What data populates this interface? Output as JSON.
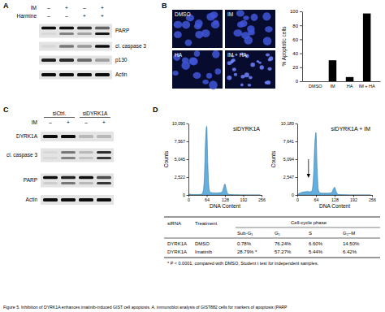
{
  "panel_labels": [
    "A",
    "B",
    "C",
    "D"
  ],
  "blot_a": {
    "conditions": [
      {
        "label": "IM",
        "values": [
          "–",
          "+",
          "–",
          "+"
        ]
      },
      {
        "label": "Harmine",
        "values": [
          "–",
          "–",
          "+",
          "+"
        ]
      }
    ],
    "rows": [
      "PARP",
      "cl. caspase 3",
      "p130",
      "Actin"
    ]
  },
  "micrographs": [
    "DMSO",
    "IM",
    "HA",
    "IM + HA"
  ],
  "blot_c": {
    "groups": [
      "siCtrl.",
      "siDYRK1A"
    ],
    "conditions": [
      {
        "label": "IM",
        "values": [
          "–",
          "+",
          "–",
          "+"
        ]
      }
    ],
    "rows": [
      "DYRK1A",
      "cl. caspase 3",
      "PARP",
      "Actin"
    ]
  },
  "chart_data": [
    {
      "type": "bar",
      "y_label": "% Apoptotic cells",
      "categories": [
        "DMSO",
        "IM",
        "HA",
        "IM + HA"
      ],
      "values": [
        0,
        30,
        6,
        97
      ],
      "color": "#000000",
      "ylim": [
        0,
        100
      ],
      "yticks": [
        0,
        20,
        40,
        60,
        80,
        100
      ]
    },
    {
      "type": "area",
      "title": "siDYRK1A",
      "x_label": "DNA Content",
      "y_label": "Counts",
      "x": [
        0,
        4,
        8,
        12,
        16,
        20,
        24,
        28,
        32,
        36,
        40,
        44,
        48,
        52,
        56,
        60,
        64,
        68,
        72,
        76,
        80,
        84,
        88,
        92,
        96,
        100,
        104,
        108,
        112,
        116,
        120,
        124,
        128,
        132,
        136,
        140,
        144,
        148,
        152,
        156,
        160,
        164,
        168,
        172,
        176,
        180,
        184,
        188,
        192,
        196,
        200,
        204,
        208,
        212,
        216,
        220,
        224,
        228,
        232,
        236,
        240,
        244,
        248,
        252
      ],
      "values": [
        0,
        120,
        90,
        70,
        60,
        55,
        55,
        60,
        60,
        70,
        80,
        100,
        180,
        600,
        2600,
        7800,
        9700,
        4200,
        900,
        400,
        330,
        310,
        300,
        300,
        300,
        300,
        300,
        310,
        330,
        380,
        600,
        1200,
        1550,
        900,
        300,
        120,
        80,
        60,
        50,
        40,
        30,
        25,
        20,
        18,
        15,
        12,
        10,
        8,
        6,
        5,
        4,
        3,
        2,
        2,
        1,
        1,
        1,
        0,
        0,
        0,
        0,
        0,
        0,
        0
      ],
      "color": "#3d9bd6",
      "xlim": [
        0,
        256
      ],
      "xticks": [
        0,
        64,
        128,
        192,
        256
      ],
      "ylim": [
        0,
        10090
      ],
      "yticks": [
        0,
        {
          "value": 2522,
          "label": "2,522"
        },
        {
          "value": 5045,
          "label": "5,045"
        },
        {
          "value": 7567,
          "label": "7,567"
        },
        {
          "value": 10090,
          "label": "10,090"
        }
      ]
    },
    {
      "type": "area",
      "title": "siDYRK1A + IM",
      "x_label": "DNA Content",
      "y_label": "Counts",
      "x": [
        0,
        4,
        8,
        12,
        16,
        20,
        24,
        28,
        32,
        36,
        40,
        44,
        48,
        52,
        56,
        60,
        64,
        68,
        72,
        76,
        80,
        84,
        88,
        92,
        96,
        100,
        104,
        108,
        112,
        116,
        120,
        124,
        128,
        132,
        136,
        140,
        144,
        148,
        152,
        156,
        160,
        164,
        168,
        172,
        176,
        180,
        184,
        188,
        192,
        196,
        200,
        204,
        208,
        212,
        216,
        220,
        224,
        228,
        232,
        236,
        240,
        244,
        248,
        252
      ],
      "values": [
        0,
        150,
        250,
        320,
        380,
        420,
        450,
        470,
        480,
        480,
        470,
        460,
        480,
        900,
        3000,
        7200,
        8900,
        3800,
        800,
        350,
        280,
        260,
        250,
        250,
        250,
        250,
        250,
        260,
        280,
        320,
        500,
        900,
        1100,
        650,
        220,
        90,
        60,
        45,
        35,
        30,
        25,
        20,
        15,
        12,
        10,
        8,
        6,
        5,
        4,
        3,
        2,
        2,
        1,
        1,
        1,
        0,
        0,
        0,
        0,
        0,
        0,
        0,
        0,
        0
      ],
      "color": "#3d9bd6",
      "xlim": [
        0,
        256
      ],
      "xticks": [
        0,
        64,
        128,
        192,
        256
      ],
      "ylim": [
        0,
        10189
      ],
      "yticks": [
        0,
        {
          "value": 2547,
          "label": "2,547"
        },
        {
          "value": 5094,
          "label": "5,094"
        },
        {
          "value": 7641,
          "label": "7,641"
        },
        {
          "value": 10189,
          "label": "10,189"
        }
      ]
    }
  ],
  "table": {
    "group_header": "Cell-cycle phase",
    "columns": [
      "siRNA",
      "Treatment",
      "Sub-G₁",
      "G₁",
      "S",
      "G₂–M"
    ],
    "rows": [
      [
        "DYRK1A",
        "DMSO",
        "0.78%",
        "76.24%",
        "6.60%",
        "14.50%"
      ],
      [
        "DYRK1A",
        "Imatinib",
        "28.79% *",
        "57.27%",
        "5.44%",
        "6.42%"
      ]
    ],
    "footnote": "* P < 0.0001, compared with DMSO, Student t test for independent samples."
  },
  "caption": "Figure 5. Inhibition of DYRK1A enhances imatinib-induced GIST cell apoptosis. A, immunoblot analysis of GIST882 cells for markers of apoptosis (PARP"
}
